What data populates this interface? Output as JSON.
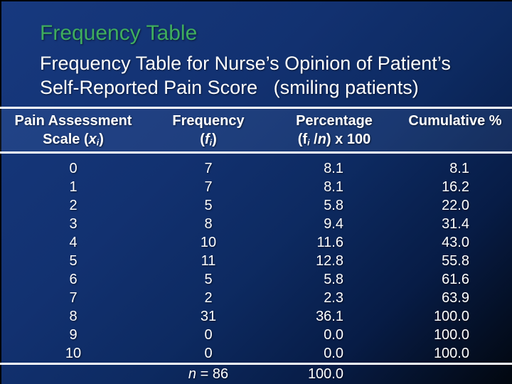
{
  "slide": {
    "title": "Frequency Table",
    "subtitle_line1": "Frequency Table for Nurse’s Opinion of Patient’s",
    "subtitle_line2": "Self-Reported Pain Score   (smiling patients)"
  },
  "colors": {
    "title_green": "#3fae5e",
    "background_top_left": "#17397f",
    "background_bottom_right": "#02070f",
    "rule_white": "#ffffff",
    "text_white": "#ffffff"
  },
  "table": {
    "headers": {
      "col1": {
        "line1": "Pain Assessment",
        "l2_pre": "Scale (",
        "l2_var": "x",
        "l2_sub": "i",
        "l2_post": ")"
      },
      "col2": {
        "line1": "Frequency",
        "l2_pre": "(",
        "l2_var": "f",
        "l2_sub": "i",
        "l2_post": ")"
      },
      "col3": {
        "line1": "Percentage",
        "l2_pre": "(f",
        "l2_sub": "i",
        "l2_mid": " /",
        "l2_var": "n",
        "l2_post": ") x 100"
      },
      "col4": {
        "line1": "Cumulative %"
      }
    },
    "rows": [
      {
        "x": "0",
        "f": "7",
        "pct": "8.1",
        "cum": "8.1"
      },
      {
        "x": "1",
        "f": "7",
        "pct": "8.1",
        "cum": "16.2"
      },
      {
        "x": "2",
        "f": "5",
        "pct": "5.8",
        "cum": "22.0"
      },
      {
        "x": "3",
        "f": "8",
        "pct": "9.4",
        "cum": "31.4"
      },
      {
        "x": "4",
        "f": "10",
        "pct": "11.6",
        "cum": "43.0"
      },
      {
        "x": "5",
        "f": "11",
        "pct": "12.8",
        "cum": "55.8"
      },
      {
        "x": "6",
        "f": "5",
        "pct": "5.8",
        "cum": "61.6"
      },
      {
        "x": "7",
        "f": "2",
        "pct": "2.3",
        "cum": "63.9"
      },
      {
        "x": "8",
        "f": "31",
        "pct": "36.1",
        "cum": "100.0"
      },
      {
        "x": "9",
        "f": "0",
        "pct": "0.0",
        "cum": "100.0"
      },
      {
        "x": "10",
        "f": "0",
        "pct": "0.0",
        "cum": "100.0"
      }
    ],
    "footer": {
      "n_label": "n",
      "n_rest": " = 86",
      "total_pct": "100.0"
    }
  },
  "chart_data": {
    "type": "table",
    "title": "Frequency Table for Nurse’s Opinion of Patient’s Self-Reported Pain Score (smiling patients)",
    "columns": [
      "Pain Assessment Scale (xi)",
      "Frequency (fi)",
      "Percentage (fi /n) x 100",
      "Cumulative %"
    ],
    "pain_scale": [
      0,
      1,
      2,
      3,
      4,
      5,
      6,
      7,
      8,
      9,
      10
    ],
    "frequency": [
      7,
      7,
      5,
      8,
      10,
      11,
      5,
      2,
      31,
      0,
      0
    ],
    "percentage": [
      8.1,
      8.1,
      5.8,
      9.4,
      11.6,
      12.8,
      5.8,
      2.3,
      36.1,
      0.0,
      0.0
    ],
    "cumulative_percent": [
      8.1,
      16.2,
      22.0,
      31.4,
      43.0,
      55.8,
      61.6,
      63.9,
      100.0,
      100.0,
      100.0
    ],
    "n_total": 86,
    "percentage_total": 100.0
  }
}
